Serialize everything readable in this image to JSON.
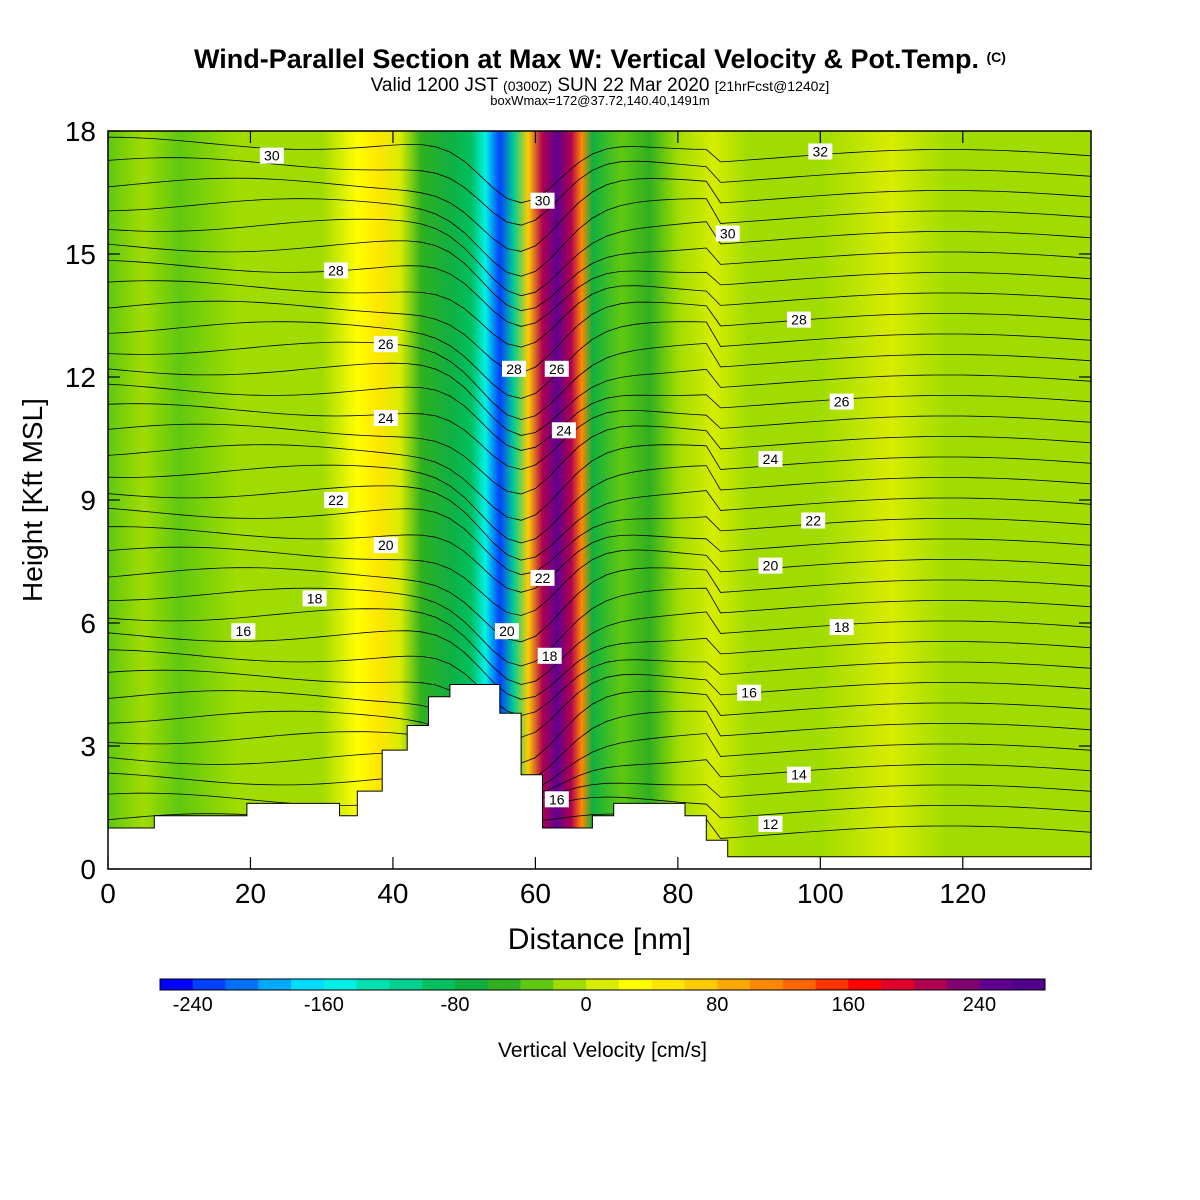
{
  "header": {
    "title": "Wind-Parallel Section at Max W: Vertical Velocity & Pot.Temp.",
    "title_mark": "(C)",
    "subtitle_valid": "Valid 1200 JST",
    "subtitle_utc": "(0300Z)",
    "subtitle_date": "SUN 22 Mar 2020",
    "subtitle_fcst": "[21hrFcst@1240z]",
    "box_info": "boxWmax=172@37.72,140.40,1491m"
  },
  "chart_data": {
    "type": "heatmap",
    "xlabel": "Distance [nm]",
    "ylabel": "Height [Kft MSL]",
    "xlim": [
      0,
      138
    ],
    "ylim": [
      0,
      18
    ],
    "x_ticks": [
      0,
      20,
      40,
      60,
      80,
      100,
      120
    ],
    "y_ticks": [
      0,
      3,
      6,
      9,
      12,
      15,
      18
    ],
    "colorbar": {
      "label": "Vertical Velocity [cm/s]",
      "min": -260,
      "max": 280,
      "step": 20,
      "tick_labels": [
        -240,
        -160,
        -80,
        0,
        80,
        160,
        240
      ],
      "colors": [
        "#0000ff",
        "#0040ff",
        "#0070ff",
        "#00a8ff",
        "#00dcff",
        "#00f0e6",
        "#00e0b0",
        "#00d090",
        "#00c060",
        "#10b040",
        "#30b020",
        "#60c810",
        "#a0dc00",
        "#d8ec00",
        "#ffff00",
        "#ffe600",
        "#ffcc00",
        "#ffaa00",
        "#ff8800",
        "#ff6600",
        "#ff3300",
        "#ff0000",
        "#e0002a",
        "#b00050",
        "#800070",
        "#600090",
        "#50008c"
      ]
    },
    "velocity_field": [
      {
        "x": 0,
        "w": -40
      },
      {
        "x": 5,
        "w": -20
      },
      {
        "x": 10,
        "w": -40
      },
      {
        "x": 18,
        "w": -20
      },
      {
        "x": 25,
        "w": -10
      },
      {
        "x": 30,
        "w": -20
      },
      {
        "x": 35,
        "w": 20
      },
      {
        "x": 38,
        "w": 40
      },
      {
        "x": 41,
        "w": 10
      },
      {
        "x": 44,
        "w": -50
      },
      {
        "x": 48,
        "w": -70
      },
      {
        "x": 51,
        "w": -100
      },
      {
        "x": 53,
        "w": -160
      },
      {
        "x": 55,
        "w": -240
      },
      {
        "x": 57,
        "w": -120
      },
      {
        "x": 59,
        "w": 60
      },
      {
        "x": 61,
        "w": 200
      },
      {
        "x": 63,
        "w": 240
      },
      {
        "x": 65,
        "w": 200
      },
      {
        "x": 66.5,
        "w": 100
      },
      {
        "x": 68,
        "w": -80
      },
      {
        "x": 72,
        "w": -40
      },
      {
        "x": 76,
        "w": -60
      },
      {
        "x": 80,
        "w": -20
      },
      {
        "x": 85,
        "w": 0
      },
      {
        "x": 90,
        "w": -20
      },
      {
        "x": 100,
        "w": -10
      },
      {
        "x": 110,
        "w": 0
      },
      {
        "x": 118,
        "w": -20
      },
      {
        "x": 128,
        "w": -10
      },
      {
        "x": 138,
        "w": -10
      }
    ],
    "theta_contours": [
      {
        "label": "30",
        "x": 23,
        "y": 17.4
      },
      {
        "label": "32",
        "x": 100,
        "y": 17.5
      },
      {
        "label": "30",
        "x": 61,
        "y": 16.3
      },
      {
        "label": "30",
        "x": 87,
        "y": 15.5
      },
      {
        "label": "28",
        "x": 32,
        "y": 14.6
      },
      {
        "label": "28",
        "x": 97,
        "y": 13.4
      },
      {
        "label": "26",
        "x": 39,
        "y": 12.8
      },
      {
        "label": "28",
        "x": 57,
        "y": 12.2
      },
      {
        "label": "26",
        "x": 63,
        "y": 12.2
      },
      {
        "label": "26",
        "x": 103,
        "y": 11.4
      },
      {
        "label": "24",
        "x": 39,
        "y": 11.0
      },
      {
        "label": "24",
        "x": 64,
        "y": 10.7
      },
      {
        "label": "24",
        "x": 93,
        "y": 10.0
      },
      {
        "label": "22",
        "x": 32,
        "y": 9.0
      },
      {
        "label": "22",
        "x": 99,
        "y": 8.5
      },
      {
        "label": "20",
        "x": 39,
        "y": 7.9
      },
      {
        "label": "20",
        "x": 93,
        "y": 7.4
      },
      {
        "label": "22",
        "x": 61,
        "y": 7.1
      },
      {
        "label": "18",
        "x": 29,
        "y": 6.6
      },
      {
        "label": "18",
        "x": 103,
        "y": 5.9
      },
      {
        "label": "20",
        "x": 56,
        "y": 5.8
      },
      {
        "label": "16",
        "x": 19,
        "y": 5.8
      },
      {
        "label": "18",
        "x": 62,
        "y": 5.2
      },
      {
        "label": "16",
        "x": 90,
        "y": 4.3
      },
      {
        "label": "14",
        "x": 97,
        "y": 2.3
      },
      {
        "label": "16",
        "x": 63,
        "y": 1.7
      },
      {
        "label": "12",
        "x": 93,
        "y": 1.1
      }
    ]
  }
}
